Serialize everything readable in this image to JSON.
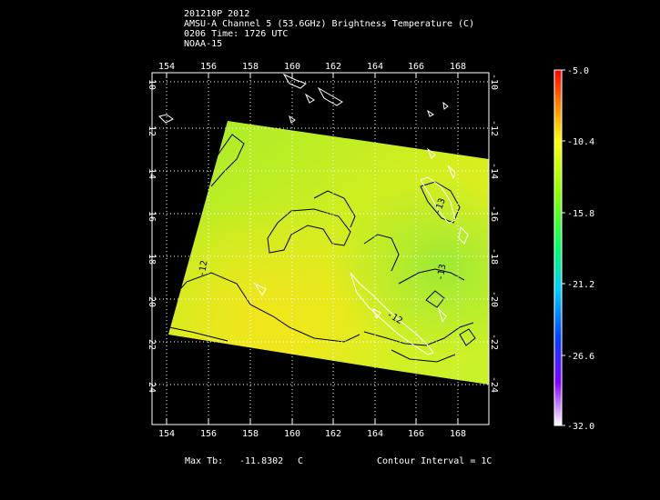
{
  "header": {
    "line1": "201210P 2012",
    "line2": "AMSU-A Channel 5 (53.6GHz) Brightness Temperature (C)",
    "line3": "0206 Time: 1726 UTC",
    "line4": "NOAA-15"
  },
  "map": {
    "lon_ticks": [
      "154",
      "156",
      "158",
      "160",
      "162",
      "164",
      "166",
      "168"
    ],
    "lat_ticks": [
      "-10",
      "-12",
      "-14",
      "-16",
      "-18",
      "-20",
      "-22",
      "-24"
    ],
    "contour_labels": [
      "-12",
      "-13",
      "-12",
      "-13"
    ],
    "colors": {
      "background": "#000000",
      "frame": "#ffffff",
      "grid": "#ffffff",
      "contour": "#000000",
      "coastline": "#ffffff"
    }
  },
  "colorbar": {
    "ticks": [
      "-5.0",
      "-10.4",
      "-15.8",
      "-21.2",
      "-26.6",
      "-32.0"
    ],
    "colors": [
      "#ff0000",
      "#ff8800",
      "#ffff00",
      "#88ff00",
      "#00ff66",
      "#00ccff",
      "#0044ff",
      "#8800ff",
      "#ffffff"
    ]
  },
  "footer": {
    "max_tb_label": "Max Tb:",
    "max_tb_value": "-11.8302",
    "max_tb_unit": "C",
    "contour_interval": "Contour Interval = 1C"
  }
}
